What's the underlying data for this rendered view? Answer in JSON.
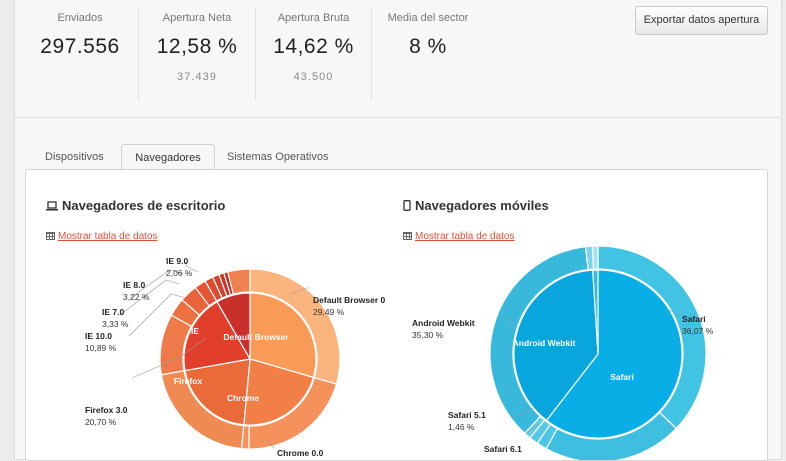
{
  "stats": [
    {
      "label": "Enviados",
      "value": "297.556",
      "sub": ""
    },
    {
      "label": "Apertura Neta",
      "value": "12,58 %",
      "sub": "37.439"
    },
    {
      "label": "Apertura Bruta",
      "value": "14,62 %",
      "sub": "43.500"
    },
    {
      "label": "Media del sector",
      "value": "8 %",
      "sub": ""
    }
  ],
  "export_label": "Exportar datos apertura",
  "tabs": [
    {
      "label": "Dispositivos",
      "active": false
    },
    {
      "label": "Navegadores",
      "active": true
    },
    {
      "label": "Sistemas Operativos",
      "active": false
    }
  ],
  "desktop": {
    "title": "Navegadores de escritorio",
    "link": "Mostrar tabla de datos",
    "icon": "laptop-icon",
    "inner": [
      {
        "name": "Default Browser",
        "value": 29.49
      },
      {
        "name": "Chrome",
        "value": 22
      },
      {
        "name": "Firefox",
        "value": 20.7
      },
      {
        "name": "IE",
        "value": 19.5
      },
      {
        "name": "",
        "value": 8.31
      }
    ],
    "labels": [
      {
        "name": "Default Browser 0",
        "pct": "29,49 %"
      },
      {
        "name": "Chrome 0.0",
        "pct": ""
      },
      {
        "name": "Firefox 3.0",
        "pct": "20,70 %"
      },
      {
        "name": "IE 10.0",
        "pct": "10,89 %"
      },
      {
        "name": "IE 7.0",
        "pct": "3,33 %"
      },
      {
        "name": "IE 8.0",
        "pct": "3,22 %"
      },
      {
        "name": "IE 9.0",
        "pct": "2,06 %"
      }
    ],
    "colors": {
      "default": "#f99a57",
      "chrome": "#f27f45",
      "firefox": "#ea6a3a",
      "ie": "#e23e2c",
      "other": "#c9302c"
    }
  },
  "mobile": {
    "title": "Navegadores móviles",
    "link": "Mostrar tabla de datos",
    "icon": "mobile-icon",
    "inner": [
      {
        "name": "Safari",
        "value": 60.5
      },
      {
        "name": "Android Webkit",
        "value": 38.5
      },
      {
        "name": "",
        "value": 1
      }
    ],
    "labels": [
      {
        "name": "Safari",
        "pct": "36,07 %"
      },
      {
        "name": "Android Webkit",
        "pct": "35,30 %"
      },
      {
        "name": "Safari 5.1",
        "pct": "1,46 %"
      },
      {
        "name": "Safari 6.1",
        "pct": ""
      }
    ],
    "colors": {
      "inner": "#0aaee6",
      "outer": "#41c3e3"
    }
  }
}
